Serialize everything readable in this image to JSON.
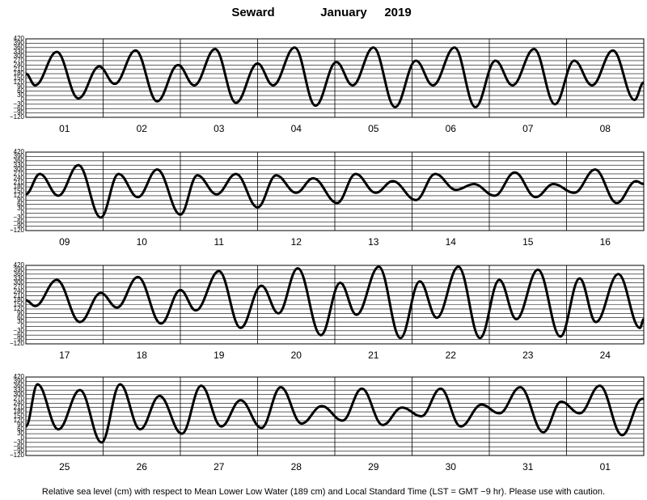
{
  "header": {
    "station": "Seward",
    "month": "January",
    "year": "2019"
  },
  "footer": "Relative sea level (cm) with respect to Mean Lower Low Water (189 cm) and Local Standard Time (LST = GMT −9 hr). Please use with caution.",
  "chart_data": [
    {
      "type": "line",
      "color": "#000000",
      "grid": true,
      "categories": [
        "01",
        "02",
        "03",
        "04",
        "05",
        "06",
        "07",
        "08"
      ],
      "xlim": [
        0,
        8
      ],
      "ylim": [
        -120,
        420
      ],
      "yticks": [
        {
          "value": -120,
          "label": "−120"
        },
        {
          "value": -90,
          "label": "−90"
        },
        {
          "value": -60,
          "label": "−60"
        },
        {
          "value": -30,
          "label": "−30"
        },
        0,
        30,
        60,
        90,
        120,
        150,
        180,
        210,
        240,
        270,
        300,
        330,
        360,
        390,
        420
      ],
      "x": [
        0,
        0.12,
        0.4,
        0.68,
        0.95,
        1.15,
        1.42,
        1.7,
        1.97,
        2.18,
        2.45,
        2.72,
        3.0,
        3.2,
        3.48,
        3.75,
        4.02,
        4.23,
        4.5,
        4.78,
        5.05,
        5.27,
        5.55,
        5.82,
        6.08,
        6.3,
        6.58,
        6.85,
        7.1,
        7.33,
        7.6,
        7.88,
        8
      ],
      "values": [
        180,
        100,
        330,
        10,
        230,
        110,
        340,
        -10,
        240,
        100,
        350,
        -20,
        250,
        100,
        360,
        -40,
        260,
        100,
        360,
        -50,
        270,
        100,
        360,
        -50,
        270,
        100,
        350,
        -30,
        270,
        100,
        340,
        0,
        120
      ]
    },
    {
      "type": "line",
      "color": "#000000",
      "grid": true,
      "categories": [
        "09",
        "10",
        "11",
        "12",
        "13",
        "14",
        "15",
        "16"
      ],
      "xlim": [
        0,
        8
      ],
      "ylim": [
        -120,
        420
      ],
      "yticks": [
        {
          "value": -120,
          "label": "−120"
        },
        {
          "value": -90,
          "label": "−90"
        },
        {
          "value": -60,
          "label": "−60"
        },
        {
          "value": -30,
          "label": "−30"
        },
        0,
        30,
        60,
        90,
        120,
        150,
        180,
        210,
        240,
        270,
        300,
        330,
        360,
        390,
        420
      ],
      "x": [
        0,
        0.18,
        0.42,
        0.68,
        0.97,
        1.2,
        1.45,
        1.7,
        2.0,
        2.22,
        2.47,
        2.72,
        3.0,
        3.24,
        3.5,
        3.72,
        4.03,
        4.27,
        4.53,
        4.75,
        5.05,
        5.3,
        5.57,
        5.8,
        6.07,
        6.33,
        6.6,
        6.83,
        7.1,
        7.37,
        7.65,
        7.9,
        8
      ],
      "values": [
        130,
        270,
        120,
        330,
        -30,
        270,
        110,
        300,
        -10,
        260,
        130,
        270,
        40,
        260,
        140,
        240,
        70,
        270,
        140,
        220,
        90,
        270,
        160,
        200,
        120,
        280,
        110,
        200,
        140,
        300,
        70,
        220,
        200
      ]
    },
    {
      "type": "line",
      "color": "#000000",
      "grid": true,
      "categories": [
        "17",
        "18",
        "19",
        "20",
        "21",
        "22",
        "23",
        "24"
      ],
      "xlim": [
        0,
        8
      ],
      "ylim": [
        -120,
        420
      ],
      "yticks": [
        {
          "value": -120,
          "label": "−120"
        },
        {
          "value": -90,
          "label": "−90"
        },
        {
          "value": -60,
          "label": "−60"
        },
        {
          "value": -30,
          "label": "−30"
        },
        0,
        30,
        60,
        90,
        120,
        150,
        180,
        210,
        240,
        270,
        300,
        330,
        360,
        390,
        420
      ],
      "x": [
        0,
        0.12,
        0.4,
        0.7,
        0.97,
        1.18,
        1.45,
        1.75,
        2.0,
        2.2,
        2.5,
        2.78,
        3.05,
        3.27,
        3.52,
        3.82,
        4.07,
        4.28,
        4.57,
        4.85,
        5.1,
        5.32,
        5.6,
        5.88,
        6.13,
        6.35,
        6.63,
        6.92,
        7.17,
        7.38,
        7.67,
        7.95,
        8
      ],
      "values": [
        180,
        140,
        320,
        30,
        230,
        130,
        340,
        20,
        250,
        110,
        380,
        -10,
        280,
        90,
        400,
        -60,
        300,
        80,
        410,
        -80,
        310,
        60,
        410,
        -80,
        320,
        50,
        390,
        -70,
        330,
        30,
        360,
        -10,
        50
      ]
    },
    {
      "type": "line",
      "color": "#000000",
      "grid": true,
      "categories": [
        "25",
        "26",
        "27",
        "28",
        "29",
        "30",
        "31",
        "01"
      ],
      "xlim": [
        0,
        8
      ],
      "ylim": [
        -120,
        420
      ],
      "yticks": [
        {
          "value": -120,
          "label": "−120"
        },
        {
          "value": -90,
          "label": "−90"
        },
        {
          "value": -60,
          "label": "−60"
        },
        {
          "value": -30,
          "label": "−30"
        },
        0,
        30,
        60,
        90,
        120,
        150,
        180,
        210,
        240,
        270,
        300,
        330,
        360,
        390,
        420
      ],
      "x": [
        0,
        0.15,
        0.42,
        0.7,
        0.98,
        1.22,
        1.48,
        1.73,
        2.02,
        2.27,
        2.53,
        2.78,
        3.05,
        3.3,
        3.57,
        3.83,
        4.1,
        4.35,
        4.62,
        4.87,
        5.12,
        5.37,
        5.63,
        5.9,
        6.13,
        6.4,
        6.7,
        6.93,
        7.17,
        7.43,
        7.72,
        7.98,
        8
      ],
      "values": [
        80,
        370,
        60,
        330,
        -30,
        370,
        60,
        290,
        30,
        360,
        80,
        260,
        70,
        350,
        100,
        220,
        120,
        340,
        90,
        210,
        150,
        340,
        80,
        230,
        170,
        350,
        40,
        250,
        170,
        360,
        20,
        270,
        270
      ]
    }
  ]
}
